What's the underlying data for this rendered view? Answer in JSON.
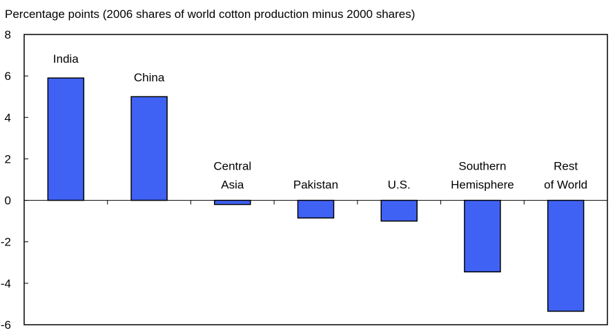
{
  "chart_data": {
    "type": "bar",
    "title": "Percentage points (2006 shares of world cotton production minus 2000 shares)",
    "categories": [
      "India",
      "China",
      "Central\nAsia",
      "Pakistan",
      "U.S.",
      "Southern\nHemisphere",
      "Rest\nof World"
    ],
    "values": [
      5.9,
      5.0,
      -0.2,
      -0.85,
      -1.0,
      -3.45,
      -5.35
    ],
    "color": "#4062f4",
    "ylim": [
      -6,
      8
    ],
    "yticks": [
      -6,
      -4,
      -2,
      0,
      2,
      4,
      6,
      8
    ],
    "grid": false
  }
}
